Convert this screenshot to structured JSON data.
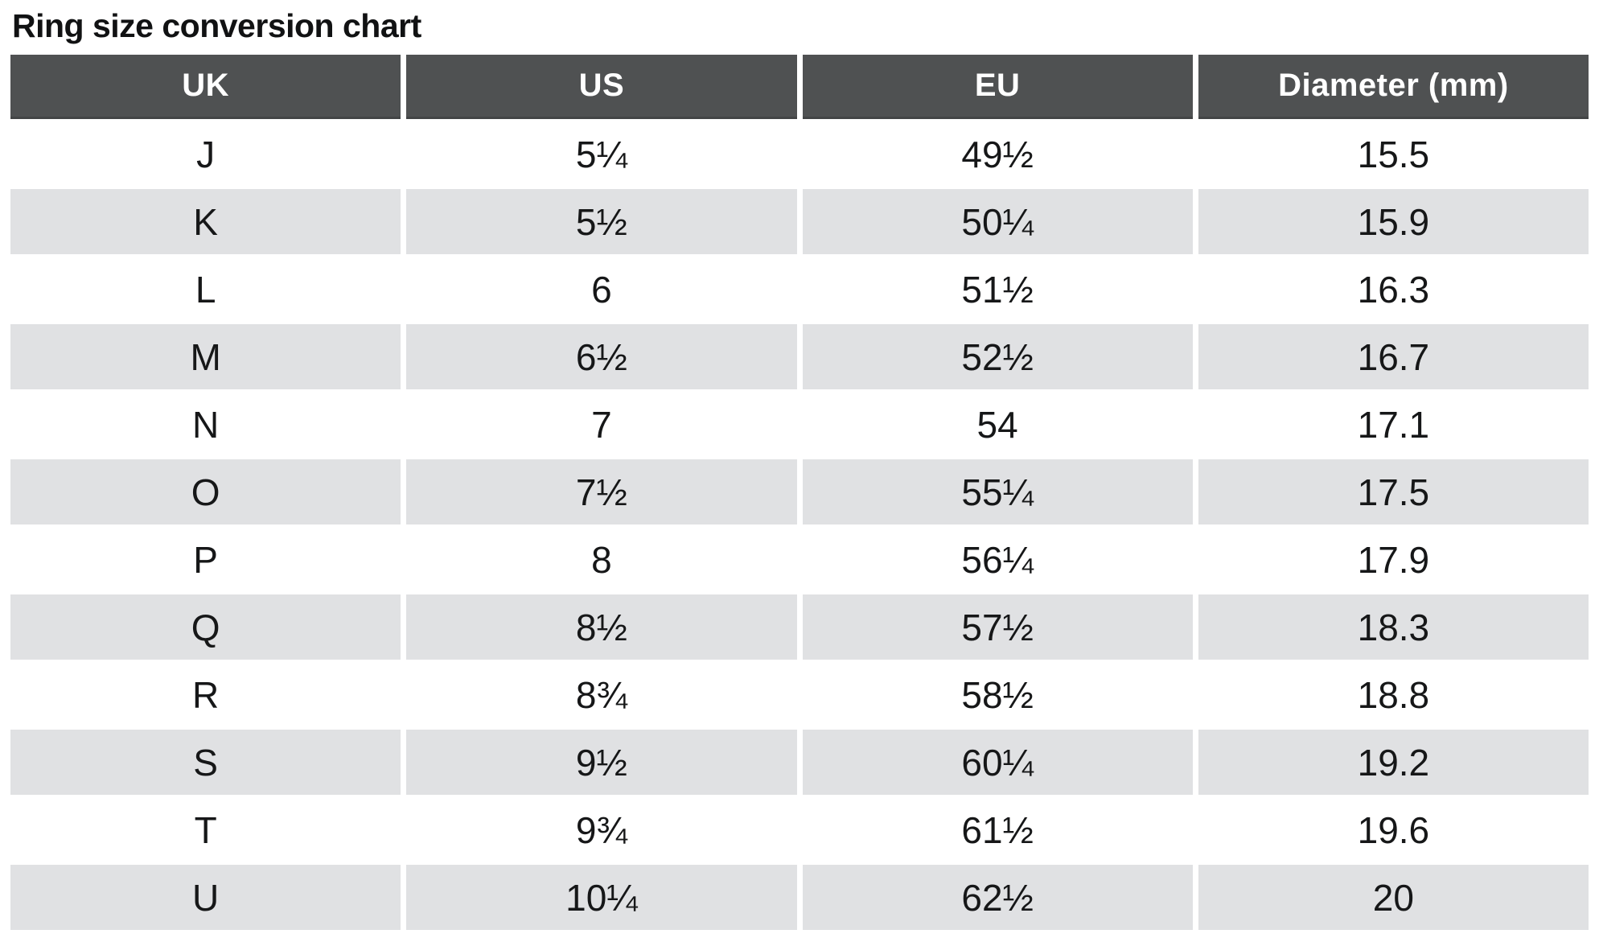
{
  "title": "Ring size conversion chart",
  "chart_data": {
    "type": "table",
    "title": "Ring size conversion chart",
    "columns": [
      "UK",
      "US",
      "EU",
      "Diameter (mm)"
    ],
    "rows": [
      [
        "J",
        "5¼",
        "49½",
        "15.5"
      ],
      [
        "K",
        "5½",
        "50¼",
        "15.9"
      ],
      [
        "L",
        "6",
        "51½",
        "16.3"
      ],
      [
        "M",
        "6½",
        "52½",
        "16.7"
      ],
      [
        "N",
        "7",
        "54",
        "17.1"
      ],
      [
        "O",
        "7½",
        "55¼",
        "17.5"
      ],
      [
        "P",
        "8",
        "56¼",
        "17.9"
      ],
      [
        "Q",
        "8½",
        "57½",
        "18.3"
      ],
      [
        "R",
        "8¾",
        "58½",
        "18.8"
      ],
      [
        "S",
        "9½",
        "60¼",
        "19.2"
      ],
      [
        "T",
        "9¾",
        "61½",
        "19.6"
      ],
      [
        "U",
        "10¼",
        "62½",
        "20"
      ]
    ],
    "layout": {
      "striped": true,
      "stripe_pattern": "even-data-rows-gray",
      "header_position": "top"
    }
  },
  "colors": {
    "header_bg": "#4f5152",
    "header_border_bottom": "#434546",
    "header_text": "#ffffff",
    "stripe_row_bg": "#e0e1e3",
    "plain_row_bg": "#ffffff",
    "body_text": "#161718",
    "title_text": "#111213"
  }
}
